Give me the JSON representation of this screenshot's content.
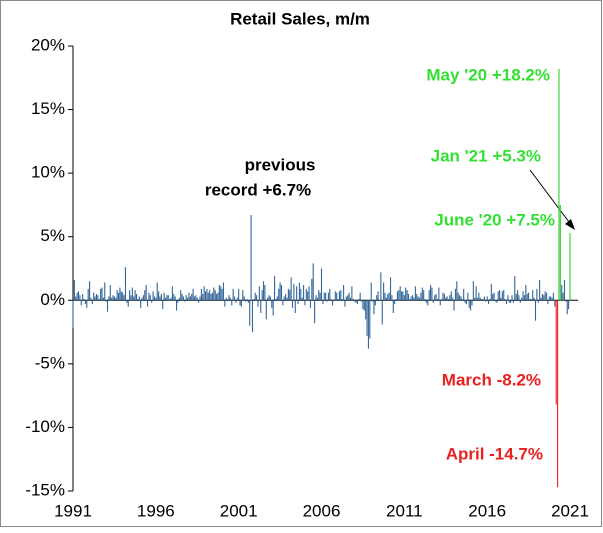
{
  "chart_data": {
    "type": "bar",
    "title": "Retail Sales, m/m",
    "categories": [
      "1991",
      null,
      null,
      null,
      null,
      null,
      null,
      null,
      null,
      null,
      null,
      null,
      null,
      null,
      null,
      null,
      null,
      null,
      null,
      null,
      null,
      null,
      null,
      null,
      null,
      null,
      null,
      null,
      null,
      null,
      null,
      null,
      null,
      null,
      null,
      null,
      null,
      null,
      null,
      null,
      null,
      null,
      null,
      null,
      null,
      null,
      null,
      null,
      null,
      null,
      null,
      null,
      null,
      null,
      null,
      null,
      null,
      null,
      null,
      null,
      "1996",
      null,
      null,
      null,
      null,
      null,
      null,
      null,
      null,
      null,
      null,
      null,
      null,
      null,
      null,
      null,
      null,
      null,
      null,
      null,
      null,
      null,
      null,
      null,
      null,
      null,
      null,
      null,
      null,
      null,
      null,
      null,
      null,
      null,
      null,
      null,
      null,
      null,
      null,
      null,
      null,
      null,
      null,
      null,
      null,
      null,
      null,
      null,
      null,
      null,
      null,
      null,
      null,
      null,
      null,
      null,
      null,
      null,
      null,
      null,
      "2001",
      null,
      null,
      null,
      null,
      null,
      null,
      null,
      null,
      null,
      null,
      null,
      null,
      null,
      null,
      null,
      null,
      null,
      null,
      null,
      null,
      null,
      null,
      null,
      null,
      null,
      null,
      null,
      null,
      null,
      null,
      null,
      null,
      null,
      null,
      null,
      null,
      null,
      null,
      null,
      null,
      null,
      null,
      null,
      null,
      null,
      null,
      null,
      null,
      null,
      null,
      null,
      null,
      null,
      null,
      null,
      null,
      null,
      null,
      null,
      "2006",
      null,
      null,
      null,
      null,
      null,
      null,
      null,
      null,
      null,
      null,
      null,
      null,
      null,
      null,
      null,
      null,
      null,
      null,
      null,
      null,
      null,
      null,
      null,
      null,
      null,
      null,
      null,
      null,
      null,
      null,
      null,
      null,
      null,
      null,
      null,
      null,
      null,
      null,
      null,
      null,
      null,
      null,
      null,
      null,
      null,
      null,
      null,
      null,
      null,
      null,
      null,
      null,
      null,
      null,
      null,
      null,
      null,
      null,
      null,
      "2011",
      null,
      null,
      null,
      null,
      null,
      null,
      null,
      null,
      null,
      null,
      null,
      null,
      null,
      null,
      null,
      null,
      null,
      null,
      null,
      null,
      null,
      null,
      null,
      null,
      null,
      null,
      null,
      null,
      null,
      null,
      null,
      null,
      null,
      null,
      null,
      null,
      null,
      null,
      null,
      null,
      null,
      null,
      null,
      null,
      null,
      null,
      null,
      null,
      null,
      null,
      null,
      null,
      null,
      null,
      null,
      null,
      null,
      null,
      null,
      "2016",
      null,
      null,
      null,
      null,
      null,
      null,
      null,
      null,
      null,
      null,
      null,
      null,
      null,
      null,
      null,
      null,
      null,
      null,
      null,
      null,
      null,
      null,
      null,
      null,
      null,
      null,
      null,
      null,
      null,
      null,
      null,
      null,
      null,
      null,
      null,
      null,
      null,
      null,
      null,
      null,
      null,
      null,
      null,
      null,
      null,
      null,
      null,
      null,
      null,
      null,
      null,
      null,
      null,
      null,
      null,
      null,
      null,
      null,
      null,
      "2021"
    ],
    "values": [
      -2.2,
      1.6,
      0.3,
      0.6,
      0.7,
      0.4,
      -0.4,
      0.5,
      0.1,
      -0.3,
      -0.6,
      0.9,
      1.5,
      0.2,
      -0.3,
      0.6,
      0.3,
      0.5,
      0.4,
      0.1,
      0.9,
      1.0,
      0.2,
      1.4,
      -0.1,
      -0.9,
      0.3,
      1.2,
      0.2,
      0.4,
      0.3,
      0.2,
      0.8,
      0.6,
      1.0,
      0.7,
      0.6,
      0.4,
      2.6,
      -0.2,
      -0.5,
      0.8,
      0.4,
      1.0,
      0.3,
      0.8,
      0.5,
      0.1,
      0.3,
      -0.6,
      0.2,
      0.4,
      0.8,
      1.2,
      -0.5,
      0.6,
      0.4,
      -0.2,
      0.7,
      0.3,
      0.2,
      1.4,
      0.7,
      0.3,
      0.5,
      -0.7,
      0.6,
      0.2,
      0.4,
      0.4,
      0.1,
      0.2,
      1.1,
      0.5,
      0.3,
      -0.8,
      -0.2,
      0.2,
      0.8,
      0.5,
      0.3,
      -0.1,
      0.4,
      0.2,
      0.6,
      0.3,
      0.5,
      0.9,
      0.3,
      0.4,
      0.2,
      -0.2,
      0.3,
      0.9,
      0.5,
      1.1,
      0.7,
      0.9,
      0.6,
      0.8,
      0.5,
      0.6,
      1.0,
      0.8,
      0.5,
      0.6,
      1.2,
      1.1,
      0.9,
      1.4,
      -0.5,
      0.2,
      0.1,
      0.4,
      0.2,
      -0.4,
      0.9,
      0.3,
      -0.2,
      0.2,
      0.9,
      -0.4,
      -0.5,
      0.8,
      0.3,
      -0.1,
      0.1,
      -0.2,
      -2.0,
      6.7,
      -2.5,
      0.1,
      0.6,
      0.4,
      -0.5,
      1.1,
      -1.0,
      0.8,
      1.5,
      1.2,
      -1.5,
      0.2,
      0.4,
      0.3,
      -0.6,
      -1.2,
      1.9,
      0.1,
      0.3,
      0.9,
      1.4,
      1.2,
      -0.4,
      0.3,
      0.5,
      0.2,
      0.9,
      0.8,
      1.8,
      -0.6,
      1.3,
      -1.0,
      1.1,
      -0.3,
      1.4,
      0.9,
      0.2,
      1.2,
      -0.4,
      0.9,
      0.7,
      1.1,
      -0.6,
      1.7,
      2.9,
      -1.8,
      0.4,
      0.2,
      0.8,
      0.6,
      2.5,
      -0.3,
      0.6,
      0.6,
      -0.1,
      0.6,
      0.9,
      0.1,
      -0.4,
      0.0,
      0.7,
      0.6,
      0.1,
      0.7,
      0.8,
      0.1,
      1.2,
      -0.5,
      0.3,
      0.4,
      0.6,
      0.2,
      1.1,
      0.1,
      -0.1,
      -0.2,
      -0.3,
      0.1,
      0.6,
      -0.1,
      -0.7,
      -0.8,
      -1.5,
      -2.8,
      -3.8,
      -3.0,
      1.4,
      -0.1,
      -1.1,
      -0.4,
      0.4,
      0.7,
      0.0,
      2.2,
      -1.9,
      1.4,
      0.6,
      0.2,
      0.5,
      0.6,
      1.8,
      0.4,
      -1.0,
      -0.3,
      0.1,
      0.7,
      0.8,
      1.1,
      0.7,
      0.7,
      0.4,
      1.0,
      0.8,
      0.5,
      0.1,
      0.3,
      0.4,
      0.2,
      1.1,
      0.5,
      0.3,
      0.2,
      0.6,
      1.0,
      0.8,
      0.1,
      -0.2,
      -0.4,
      0.8,
      1.2,
      1.0,
      -0.2,
      0.4,
      0.5,
      0.1,
      1.0,
      -0.4,
      0.1,
      0.6,
      0.5,
      0.2,
      0.3,
      0.1,
      0.4,
      0.7,
      0.2,
      -0.8,
      0.9,
      1.5,
      0.6,
      0.4,
      0.3,
      0.1,
      0.9,
      -0.2,
      -0.3,
      0.6,
      -0.6,
      -0.8,
      -0.4,
      1.5,
      0.2,
      1.1,
      0.2,
      0.6,
      0.2,
      0.1,
      0.1,
      0.3,
      -0.1,
      0.3,
      -0.3,
      0.1,
      1.3,
      0.5,
      0.6,
      -0.1,
      -0.2,
      0.7,
      0.8,
      0.2,
      0.7,
      0.8,
      0.1,
      -0.3,
      0.4,
      -0.2,
      -0.2,
      0.4,
      -0.2,
      1.9,
      0.5,
      0.8,
      0.4,
      -0.2,
      0.2,
      0.7,
      0.4,
      1.2,
      0.5,
      0.6,
      0.1,
      0.1,
      0.8,
      0.2,
      -1.6,
      0.9,
      -0.2,
      1.6,
      0.2,
      0.5,
      0.4,
      0.7,
      0.6,
      -0.3,
      0.3,
      0.3,
      0.2,
      0.6,
      -0.5,
      -8.2,
      -14.7,
      18.2,
      7.5,
      1.2,
      0.6,
      1.6,
      -0.1,
      -1.1,
      -0.7,
      5.3
    ],
    "colors": [
      "#369",
      "#369",
      "#369",
      "#369",
      "#369",
      "#369",
      "#369",
      "#369",
      "#369",
      "#369",
      "#369",
      "#369",
      "#369",
      "#369",
      "#369",
      "#369",
      "#369",
      "#369",
      "#369",
      "#369",
      "#369",
      "#369",
      "#369",
      "#369",
      "#369",
      "#369",
      "#369",
      "#369",
      "#369",
      "#369",
      "#369",
      "#369",
      "#369",
      "#369",
      "#369",
      "#369",
      "#369",
      "#369",
      "#369",
      "#369",
      "#369",
      "#369",
      "#369",
      "#369",
      "#369",
      "#369",
      "#369",
      "#369",
      "#369",
      "#369",
      "#369",
      "#369",
      "#369",
      "#369",
      "#369",
      "#369",
      "#369",
      "#369",
      "#369",
      "#369",
      "#369",
      "#369",
      "#369",
      "#369",
      "#369",
      "#369",
      "#369",
      "#369",
      "#369",
      "#369",
      "#369",
      "#369",
      "#369",
      "#369",
      "#369",
      "#369",
      "#369",
      "#369",
      "#369",
      "#369",
      "#369",
      "#369",
      "#369",
      "#369",
      "#369",
      "#369",
      "#369",
      "#369",
      "#369",
      "#369",
      "#369",
      "#369",
      "#369",
      "#369",
      "#369",
      "#369",
      "#369",
      "#369",
      "#369",
      "#369",
      "#369",
      "#369",
      "#369",
      "#369",
      "#369",
      "#369",
      "#369",
      "#369",
      "#369",
      "#369",
      "#369",
      "#369",
      "#369",
      "#369",
      "#369",
      "#369",
      "#369",
      "#369",
      "#369",
      "#369",
      "#369",
      "#369",
      "#369",
      "#369",
      "#369",
      "#369",
      "#369",
      "#369",
      "#369",
      "#369",
      "#369",
      "#369",
      "#369",
      "#369",
      "#369",
      "#369",
      "#369",
      "#369",
      "#369",
      "#369",
      "#369",
      "#369",
      "#369",
      "#369",
      "#369",
      "#369",
      "#369",
      "#369",
      "#369",
      "#369",
      "#369",
      "#369",
      "#369",
      "#369",
      "#369",
      "#369",
      "#369",
      "#369",
      "#369",
      "#369",
      "#369",
      "#369",
      "#369",
      "#369",
      "#369",
      "#369",
      "#369",
      "#369",
      "#369",
      "#369",
      "#369",
      "#369",
      "#369",
      "#369",
      "#369",
      "#369",
      "#369",
      "#369",
      "#369",
      "#369",
      "#369",
      "#369",
      "#369",
      "#369",
      "#369",
      "#369",
      "#369",
      "#369",
      "#369",
      "#369",
      "#369",
      "#369",
      "#369",
      "#369",
      "#369",
      "#369",
      "#369",
      "#369",
      "#369",
      "#369",
      "#369",
      "#369",
      "#369",
      "#369",
      "#369",
      "#369",
      "#369",
      "#369",
      "#369",
      "#369",
      "#369",
      "#369",
      "#369",
      "#369",
      "#369",
      "#369",
      "#369",
      "#369",
      "#369",
      "#369",
      "#369",
      "#369",
      "#369",
      "#369",
      "#369",
      "#369",
      "#369",
      "#369",
      "#369",
      "#369",
      "#369",
      "#369",
      "#369",
      "#369",
      "#369",
      "#369",
      "#369",
      "#369",
      "#369",
      "#369",
      "#369",
      "#369",
      "#369",
      "#369",
      "#369",
      "#369",
      "#369",
      "#369",
      "#369",
      "#369",
      "#369",
      "#369",
      "#369",
      "#369",
      "#369",
      "#369",
      "#369",
      "#369",
      "#369",
      "#369",
      "#369",
      "#369",
      "#369",
      "#369",
      "#369",
      "#369",
      "#369",
      "#369",
      "#369",
      "#369",
      "#369",
      "#369",
      "#369",
      "#369",
      "#369",
      "#369",
      "#369",
      "#369",
      "#369",
      "#369",
      "#369",
      "#369",
      "#369",
      "#369",
      "#369",
      "#369",
      "#369",
      "#369",
      "#369",
      "#369",
      "#369",
      "#369",
      "#369",
      "#369",
      "#369",
      "#369",
      "#369",
      "#369",
      "#369",
      "#369",
      "#369",
      "#369",
      "#369",
      "#369",
      "#369",
      "#369",
      "#369",
      "#369",
      "#369",
      "#369",
      "#369",
      "#369",
      "#369",
      "#369",
      "#369",
      "#369",
      "#369",
      "#369",
      "#369",
      "#369",
      "#369",
      "#369",
      "#369",
      "#369",
      "#369",
      "#369",
      "#369",
      "#369",
      "#369",
      "#369",
      "#369",
      "#369",
      "#369",
      "#369",
      "#369",
      "#369",
      "#369",
      "#369",
      "#369",
      "#369",
      "#369",
      "#369",
      "#369",
      "#369",
      "#369",
      "#369",
      "#369",
      "#369",
      "#369",
      "#369",
      "#e22",
      "#e22",
      "#3c3",
      "#3c3",
      "#369",
      "#369",
      "#369",
      "#369",
      "#369",
      "#369",
      "#3c3"
    ],
    "ylim": [
      -15,
      20
    ],
    "yticks": [
      {
        "value": -15,
        "label": "-15%"
      },
      {
        "value": -10,
        "label": "-10%"
      },
      {
        "value": -5,
        "label": "-5%"
      },
      {
        "value": 0,
        "label": "0%"
      },
      {
        "value": 5,
        "label": "5%"
      },
      {
        "value": 10,
        "label": "10%"
      },
      {
        "value": 15,
        "label": "15%"
      },
      {
        "value": 20,
        "label": "20%"
      }
    ],
    "annotations": [
      {
        "text": "May '20 +18.2%",
        "color": "#33e033"
      },
      {
        "text": "Jan '21 +5.3%",
        "color": "#33e033"
      },
      {
        "text": "June '20 +7.5%",
        "color": "#33e033"
      },
      {
        "text": "March -8.2%",
        "color": "#e82020"
      },
      {
        "text": "April -14.7%",
        "color": "#e82020"
      },
      {
        "text": "previous",
        "color": "#000000"
      },
      {
        "text": "record +6.7%",
        "color": "#000000"
      }
    ]
  }
}
